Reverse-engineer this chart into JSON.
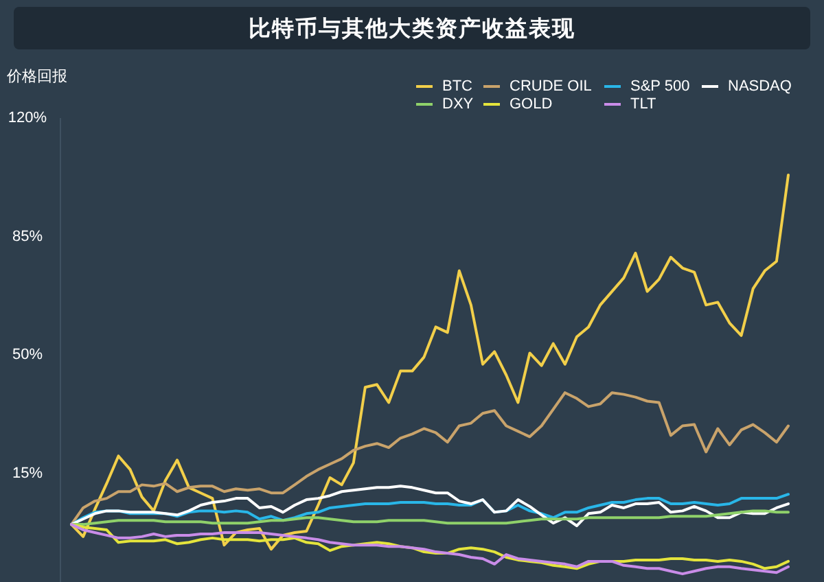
{
  "chart_data": {
    "type": "line",
    "title": "比特币与其他大类资产收益表现",
    "ylabel": "价格回报",
    "categories": [
      null,
      null,
      null,
      null,
      null,
      null,
      null,
      null,
      null,
      null,
      null,
      null,
      null,
      null,
      null,
      null,
      null,
      null,
      null,
      null,
      null,
      null,
      null,
      null,
      null,
      null,
      null,
      null,
      null,
      null,
      null,
      null,
      null,
      null,
      null,
      null,
      null,
      null,
      null,
      null,
      null,
      null,
      null,
      null,
      null,
      null,
      null,
      null,
      null,
      null,
      null,
      null,
      null,
      null,
      null,
      null,
      null,
      null,
      null,
      null,
      null,
      null
    ],
    "ylim": [
      -17,
      120
    ],
    "yticks": [
      {
        "value": 15,
        "label": "15%"
      },
      {
        "value": 50,
        "label": "50%"
      },
      {
        "value": 85,
        "label": "85%"
      },
      {
        "value": 120,
        "label": "120%"
      }
    ],
    "legend": "top right",
    "series": [
      {
        "name": "BTC",
        "color": "#f2cf4a",
        "values": [
          0,
          -3.6,
          4.5,
          12.1,
          20.2,
          16.2,
          8.1,
          4.0,
          13.0,
          19.0,
          10.9,
          9.3,
          7.7,
          -6.1,
          -2.4,
          -1.6,
          -1.2,
          -7.3,
          -3.2,
          -2.4,
          -2.0,
          5.7,
          13.8,
          11.7,
          18.2,
          40.5,
          41.3,
          36.0,
          45.3,
          45.3,
          49.4,
          58.3,
          56.7,
          74.9,
          64.8,
          47.3,
          51.0,
          44.1,
          36.0,
          50.6,
          46.9,
          53.4,
          47.3,
          55.4,
          58.3,
          64.8,
          68.8,
          72.8,
          80.1,
          68.8,
          72.4,
          78.9,
          75.7,
          74.5,
          64.8,
          65.6,
          59.5,
          55.8,
          69.6,
          74.9,
          77.7,
          103.2
        ]
      },
      {
        "name": "CRUDE OIL",
        "color": "#c9a36b",
        "values": [
          0,
          4.9,
          6.9,
          7.7,
          9.7,
          9.7,
          11.7,
          11.3,
          12.1,
          9.7,
          10.9,
          11.3,
          11.3,
          9.7,
          10.5,
          10.1,
          10.5,
          9.3,
          9.3,
          11.7,
          14.2,
          16.2,
          17.8,
          19.4,
          21.9,
          23.1,
          23.9,
          22.7,
          25.5,
          26.7,
          28.3,
          27.1,
          24.3,
          29.1,
          29.9,
          32.8,
          33.6,
          29.1,
          27.5,
          25.9,
          29.1,
          34.0,
          38.9,
          37.2,
          34.8,
          35.6,
          38.9,
          38.4,
          37.6,
          36.4,
          36.0,
          26.3,
          29.1,
          29.5,
          21.4,
          28.3,
          23.5,
          27.9,
          29.5,
          27.1,
          24.3,
          29.1
        ]
      },
      {
        "name": "S&P 500",
        "color": "#29b6e8",
        "values": [
          0,
          2,
          3.6,
          4,
          4,
          3.2,
          3.2,
          3.2,
          3.2,
          2.4,
          3.6,
          4,
          4,
          3.6,
          4,
          3.6,
          1.6,
          2.4,
          1.2,
          2,
          3.2,
          3.6,
          4.9,
          5.3,
          5.7,
          6.1,
          6.1,
          6.1,
          6.5,
          6.5,
          6.5,
          6.1,
          6.1,
          5.7,
          5.7,
          7.3,
          3.6,
          4,
          5.7,
          4,
          3.2,
          2,
          3.6,
          3.6,
          4.9,
          5.7,
          6.5,
          6.5,
          7.3,
          7.7,
          7.7,
          6.1,
          6.1,
          6.5,
          6.1,
          5.7,
          6.1,
          7.7,
          7.7,
          7.7,
          7.7,
          8.9
        ]
      },
      {
        "name": "NASDAQ",
        "color": "#ffffff",
        "values": [
          0,
          1.6,
          3.2,
          4,
          4,
          3.6,
          3.6,
          3.6,
          3.2,
          2.8,
          4,
          5.7,
          6.5,
          6.9,
          7.7,
          7.7,
          4.9,
          5.3,
          3.6,
          5.7,
          7.3,
          7.7,
          8.5,
          9.7,
          10.1,
          10.5,
          10.9,
          10.9,
          11.3,
          10.9,
          10.1,
          9.3,
          9.3,
          6.9,
          6.1,
          7.3,
          3.6,
          4,
          7.3,
          5.3,
          2.8,
          0.4,
          2,
          -0.4,
          3.2,
          3.6,
          5.7,
          4.9,
          6.1,
          6.1,
          6.5,
          3.6,
          4,
          5.3,
          4,
          2,
          2,
          3.6,
          3.2,
          3.2,
          4.9,
          6.1
        ]
      },
      {
        "name": "DXY",
        "color": "#8fd16a",
        "values": [
          0,
          0,
          0.4,
          0.8,
          1.2,
          1.2,
          1.2,
          1.2,
          0.8,
          0.8,
          0.8,
          0.8,
          0.4,
          0.4,
          0.4,
          0.4,
          0.8,
          1.2,
          1.2,
          1.6,
          2,
          2,
          1.6,
          1.2,
          0.8,
          0.8,
          0.8,
          1.2,
          1.2,
          1.2,
          1.2,
          0.8,
          0.4,
          0.4,
          0.4,
          0.4,
          0.4,
          0.4,
          0.8,
          1.2,
          1.6,
          1.6,
          1.6,
          1.6,
          2,
          2,
          2,
          2,
          2,
          2,
          2,
          2.4,
          2.4,
          2.4,
          2.4,
          2.8,
          3.2,
          3.6,
          4,
          4,
          3.6,
          3.6
        ]
      },
      {
        "name": "GOLD",
        "color": "#e4e43c",
        "values": [
          0,
          -0.8,
          -1.2,
          -1.6,
          -5.3,
          -4.9,
          -4.9,
          -4.9,
          -4.5,
          -5.7,
          -5.3,
          -4.5,
          -4,
          -4.5,
          -4.5,
          -4.5,
          -4.9,
          -4.5,
          -4.5,
          -4,
          -5.3,
          -5.7,
          -7.7,
          -6.5,
          -6.1,
          -5.7,
          -5.3,
          -5.7,
          -6.5,
          -6.9,
          -8.1,
          -8.5,
          -8.5,
          -7.3,
          -6.9,
          -7.3,
          -8.1,
          -9.7,
          -10.5,
          -10.9,
          -11.3,
          -12.1,
          -12.5,
          -13,
          -11.7,
          -10.9,
          -10.9,
          -10.9,
          -10.5,
          -10.5,
          -10.5,
          -10.1,
          -10.1,
          -10.5,
          -10.5,
          -10.9,
          -10.5,
          -10.9,
          -11.7,
          -13,
          -12.5,
          -10.9
        ]
      },
      {
        "name": "TLT",
        "color": "#c98ce8",
        "values": [
          0,
          -1.6,
          -2.4,
          -3.2,
          -4,
          -4,
          -3.6,
          -2.8,
          -3.6,
          -3.2,
          -3.2,
          -2.8,
          -2.8,
          -2.4,
          -2.4,
          -2.4,
          -2.4,
          -2.8,
          -3.2,
          -3.6,
          -4,
          -4.5,
          -5.3,
          -5.7,
          -6.1,
          -6.1,
          -6.1,
          -6.5,
          -6.5,
          -6.9,
          -7.3,
          -8.1,
          -8.5,
          -8.9,
          -9.7,
          -10.1,
          -11.7,
          -8.9,
          -10.1,
          -10.5,
          -10.9,
          -11.3,
          -11.7,
          -12.5,
          -10.9,
          -10.9,
          -10.9,
          -12.1,
          -12.5,
          -13,
          -13,
          -13.8,
          -14.6,
          -13.8,
          -13,
          -12.5,
          -12.5,
          -13,
          -13.4,
          -13.8,
          -14.2,
          -12.5
        ]
      }
    ]
  }
}
